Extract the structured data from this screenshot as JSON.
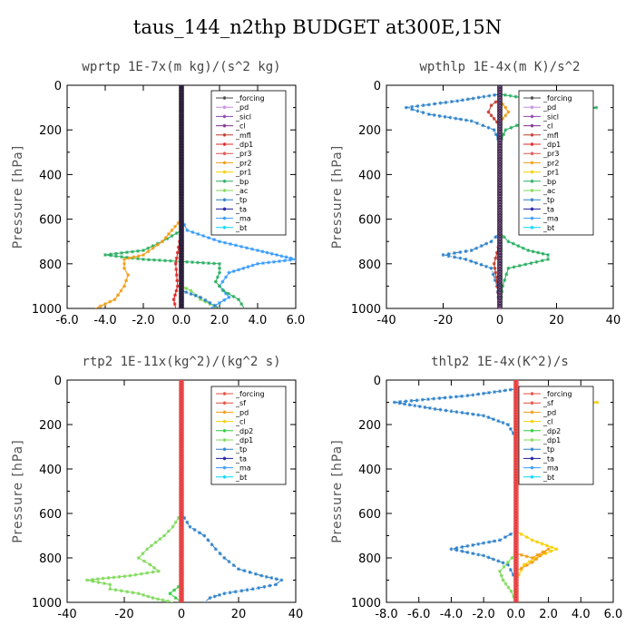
{
  "title": "taus_144_n2thp  BUDGET at300E,15N",
  "colors": {
    "forcing": "#444444",
    "pd": "#c78ce0",
    "sicl": "#8e44ad",
    "cl": "#7d2e8f",
    "mfl": "#c0392b",
    "dp1": "#e02020",
    "pr3": "#e05050",
    "pr2": "#f39c12",
    "pr1": "#f5d000",
    "bp": "#27ae60",
    "ac": "#7ed957",
    "tp": "#2a7fc9",
    "ta": "#1a1aa0",
    "ma": "#3399ff",
    "bt": "#00d8ff",
    "sf": "#e74c3c",
    "dp2": "#2ecc40"
  },
  "chart_data": [
    {
      "type": "line",
      "title": "wprtp  1E-7x(m kg)/(s^2 kg)",
      "ylabel": "Pressure [hPa]",
      "xlim": [
        -6,
        6
      ],
      "ylim": [
        1000,
        0
      ],
      "xticks": [
        "-6.0",
        "-4.0",
        "-2.0",
        "0.0",
        "2.0",
        "4.0",
        "6.0"
      ],
      "xtick_values": [
        -6,
        -4,
        -2,
        0,
        2,
        4,
        6
      ],
      "yticks": [
        "0",
        "200",
        "400",
        "600",
        "800",
        "1000"
      ],
      "legend": [
        "_forcing",
        "_pd",
        "_sicl",
        "_cl",
        "_mfl",
        "_dp1",
        "_pr3",
        "_pr2",
        "_pr1",
        "_bp",
        "_ac",
        "_tp",
        "_ta",
        "_ma",
        "_bt"
      ],
      "legend_keys": [
        "forcing",
        "pd",
        "sicl",
        "cl",
        "mfl",
        "dp1",
        "pr3",
        "pr2",
        "pr1",
        "bp",
        "ac",
        "tp",
        "ta",
        "ma",
        "bt"
      ],
      "series": [
        {
          "name": "_ma",
          "key": "ma",
          "points": [
            [
              0,
              600
            ],
            [
              0.3,
              650
            ],
            [
              2,
              700
            ],
            [
              4,
              740
            ],
            [
              5,
              760
            ],
            [
              6,
              780
            ],
            [
              4,
              800
            ],
            [
              2.5,
              840
            ],
            [
              2,
              900
            ],
            [
              2.5,
              950
            ],
            [
              1.5,
              1000
            ]
          ]
        },
        {
          "name": "_bp",
          "key": "bp",
          "points": [
            [
              0,
              650
            ],
            [
              -1,
              700
            ],
            [
              -2,
              740
            ],
            [
              -4,
              760
            ],
            [
              -2,
              780
            ],
            [
              2,
              800
            ],
            [
              2,
              840
            ],
            [
              1.8,
              880
            ],
            [
              2.2,
              920
            ],
            [
              3,
              960
            ],
            [
              3.3,
              1000
            ]
          ]
        },
        {
          "name": "_pr2",
          "key": "pr2",
          "points": [
            [
              0,
              600
            ],
            [
              -0.5,
              650
            ],
            [
              -1,
              700
            ],
            [
              -2,
              760
            ],
            [
              -3,
              780
            ],
            [
              -3,
              820
            ],
            [
              -2.8,
              850
            ],
            [
              -3,
              900
            ],
            [
              -3.5,
              960
            ],
            [
              -4,
              980
            ],
            [
              -4.5,
              1000
            ]
          ]
        },
        {
          "name": "_ac",
          "key": "ac",
          "points": [
            [
              0,
              900
            ],
            [
              0.5,
              920
            ],
            [
              1,
              960
            ],
            [
              2,
              1000
            ]
          ]
        },
        {
          "name": "_dp1",
          "key": "dp1",
          "points": [
            [
              0,
              650
            ],
            [
              -0.3,
              800
            ],
            [
              -0.2,
              900
            ],
            [
              -0.4,
              960
            ],
            [
              -0.3,
              1000
            ]
          ]
        },
        {
          "name": "_tp",
          "key": "tp",
          "points": [
            [
              0,
              920
            ],
            [
              1,
              950
            ],
            [
              2,
              1000
            ]
          ]
        }
      ]
    },
    {
      "type": "line",
      "title": "wpthlp  1E-4x(m K)/s^2",
      "ylabel": "Pressure [hPa]",
      "xlim": [
        -40,
        40
      ],
      "ylim": [
        1000,
        0
      ],
      "xticks": [
        "-40",
        "-20",
        "0",
        "20",
        "40"
      ],
      "xtick_values": [
        -40,
        -20,
        0,
        20,
        40
      ],
      "yticks": [
        "0",
        "200",
        "400",
        "600",
        "800",
        "1000"
      ],
      "legend": [
        "_forcing",
        "_pd",
        "_sicl",
        "_cl",
        "_mfl",
        "_dp1",
        "_pr3",
        "_pr2",
        "_pr1",
        "_bp",
        "_ac",
        "_tp",
        "_ta",
        "_ma",
        "_bt"
      ],
      "legend_keys": [
        "forcing",
        "pd",
        "sicl",
        "cl",
        "mfl",
        "dp1",
        "pr3",
        "pr2",
        "pr1",
        "bp",
        "ac",
        "tp",
        "ta",
        "ma",
        "bt"
      ],
      "series": [
        {
          "name": "_tp",
          "key": "tp",
          "points": [
            [
              0,
              40
            ],
            [
              -15,
              70
            ],
            [
              -33,
              100
            ],
            [
              -25,
              130
            ],
            [
              -10,
              160
            ],
            [
              -2,
              200
            ],
            [
              0,
              260
            ],
            [
              0,
              660
            ],
            [
              -3,
              700
            ],
            [
              -10,
              740
            ],
            [
              -20,
              760
            ],
            [
              -12,
              780
            ],
            [
              -3,
              820
            ],
            [
              -1,
              900
            ],
            [
              0,
              1000
            ]
          ]
        },
        {
          "name": "_bp",
          "key": "bp",
          "points": [
            [
              0,
              40
            ],
            [
              15,
              70
            ],
            [
              34,
              100
            ],
            [
              25,
              130
            ],
            [
              10,
              160
            ],
            [
              2,
              200
            ],
            [
              0,
              260
            ],
            [
              0,
              660
            ],
            [
              3,
              700
            ],
            [
              10,
              740
            ],
            [
              17,
              760
            ],
            [
              17,
              780
            ],
            [
              3,
              820
            ],
            [
              1,
              900
            ],
            [
              0,
              1000
            ]
          ]
        },
        {
          "name": "_mfl",
          "key": "mfl",
          "points": [
            [
              0,
              60
            ],
            [
              -3,
              90
            ],
            [
              -4,
              120
            ],
            [
              -2,
              150
            ],
            [
              0,
              180
            ],
            [
              0,
              700
            ],
            [
              -2,
              800
            ],
            [
              -1.5,
              840
            ],
            [
              -1,
              880
            ],
            [
              0,
              1000
            ]
          ]
        },
        {
          "name": "_pr2",
          "key": "pr2",
          "points": [
            [
              0,
              70
            ],
            [
              2,
              100
            ],
            [
              3,
              120
            ],
            [
              1,
              150
            ],
            [
              0,
              180
            ]
          ]
        }
      ]
    },
    {
      "type": "line",
      "title": "rtp2  1E-11x(kg^2)/(kg^2 s)",
      "ylabel": "Pressure [hPa]",
      "xlim": [
        -40,
        40
      ],
      "ylim": [
        1000,
        0
      ],
      "xticks": [
        "-40",
        "-20",
        "0",
        "20",
        "40"
      ],
      "xtick_values": [
        -40,
        -20,
        0,
        20,
        40
      ],
      "yticks": [
        "0",
        "200",
        "400",
        "600",
        "800",
        "1000"
      ],
      "legend": [
        "_forcing",
        "_sf",
        "_pd",
        "_cl",
        "_dp2",
        "_dp1",
        "_tp",
        "_ta",
        "_ma",
        "_bt"
      ],
      "legend_keys": [
        "sf",
        "sf",
        "pr2",
        "pr1",
        "dp2",
        "ac",
        "tp",
        "ta",
        "ma",
        "bt"
      ],
      "series": [
        {
          "name": "_tp",
          "key": "tp",
          "points": [
            [
              0,
              600
            ],
            [
              3,
              660
            ],
            [
              8,
              700
            ],
            [
              12,
              760
            ],
            [
              15,
              800
            ],
            [
              20,
              850
            ],
            [
              28,
              880
            ],
            [
              35,
              900
            ],
            [
              33,
              920
            ],
            [
              25,
              940
            ],
            [
              15,
              960
            ],
            [
              10,
              980
            ],
            [
              8,
              1000
            ]
          ]
        },
        {
          "name": "_dp1",
          "key": "ac",
          "points": [
            [
              0,
              600
            ],
            [
              -3,
              660
            ],
            [
              -6,
              700
            ],
            [
              -12,
              760
            ],
            [
              -15,
              800
            ],
            [
              -11,
              830
            ],
            [
              -8,
              860
            ],
            [
              -18,
              880
            ],
            [
              -33,
              900
            ],
            [
              -25,
              920
            ],
            [
              -25,
              940
            ],
            [
              -15,
              960
            ],
            [
              -10,
              980
            ],
            [
              -3,
              1000
            ]
          ]
        },
        {
          "name": "_dp2",
          "key": "dp2",
          "points": [
            [
              0,
              900
            ],
            [
              -1,
              930
            ],
            [
              -4,
              960
            ],
            [
              -2,
              980
            ],
            [
              0,
              1000
            ]
          ]
        }
      ]
    },
    {
      "type": "line",
      "title": "thlp2  1E-4x(K^2)/s",
      "ylabel": "Pressure [hPa]",
      "xlim": [
        -8,
        6
      ],
      "ylim": [
        1000,
        0
      ],
      "xticks": [
        "-8.0",
        "-6.0",
        "-4.0",
        "-2.0",
        "0.0",
        "2.0",
        "4.0",
        "6.0"
      ],
      "xtick_values": [
        -8,
        -6,
        -4,
        -2,
        0,
        2,
        4,
        6
      ],
      "yticks": [
        "0",
        "200",
        "400",
        "600",
        "800",
        "1000"
      ],
      "legend": [
        "_forcing",
        "_sf",
        "_pd",
        "_cl",
        "_dp2",
        "_dp1",
        "_tp",
        "_ta",
        "_ma",
        "_bt"
      ],
      "legend_keys": [
        "sf",
        "sf",
        "pr2",
        "pr1",
        "dp2",
        "ac",
        "tp",
        "ta",
        "ma",
        "bt"
      ],
      "series": [
        {
          "name": "_tp",
          "key": "tp",
          "points": [
            [
              0,
              40
            ],
            [
              -3,
              70
            ],
            [
              -7.5,
              100
            ],
            [
              -5,
              130
            ],
            [
              -2,
              160
            ],
            [
              -0.5,
              200
            ],
            [
              0,
              260
            ],
            [
              0,
              680
            ],
            [
              -1,
              720
            ],
            [
              -4,
              760
            ],
            [
              -2,
              790
            ],
            [
              -0.5,
              830
            ],
            [
              0,
              900
            ],
            [
              0,
              1000
            ]
          ]
        },
        {
          "name": "_cl",
          "key": "pr1",
          "points": [
            [
              0,
              40
            ],
            [
              2,
              70
            ],
            [
              5,
              100
            ],
            [
              3,
              130
            ],
            [
              1,
              160
            ],
            [
              0.3,
              200
            ],
            [
              0,
              260
            ],
            [
              0,
              680
            ],
            [
              1,
              720
            ],
            [
              2.5,
              760
            ],
            [
              1.5,
              790
            ],
            [
              0.5,
              830
            ],
            [
              0,
              900
            ]
          ]
        },
        {
          "name": "_dp1",
          "key": "ac",
          "points": [
            [
              0,
              780
            ],
            [
              -0.5,
              820
            ],
            [
              -1,
              860
            ],
            [
              -0.8,
              900
            ],
            [
              -0.3,
              950
            ],
            [
              0,
              1000
            ]
          ]
        },
        {
          "name": "_pd",
          "key": "pr2",
          "points": [
            [
              0,
              780
            ],
            [
              1,
              800
            ],
            [
              2,
              760
            ],
            [
              1,
              820
            ],
            [
              0,
              860
            ]
          ]
        }
      ]
    }
  ]
}
